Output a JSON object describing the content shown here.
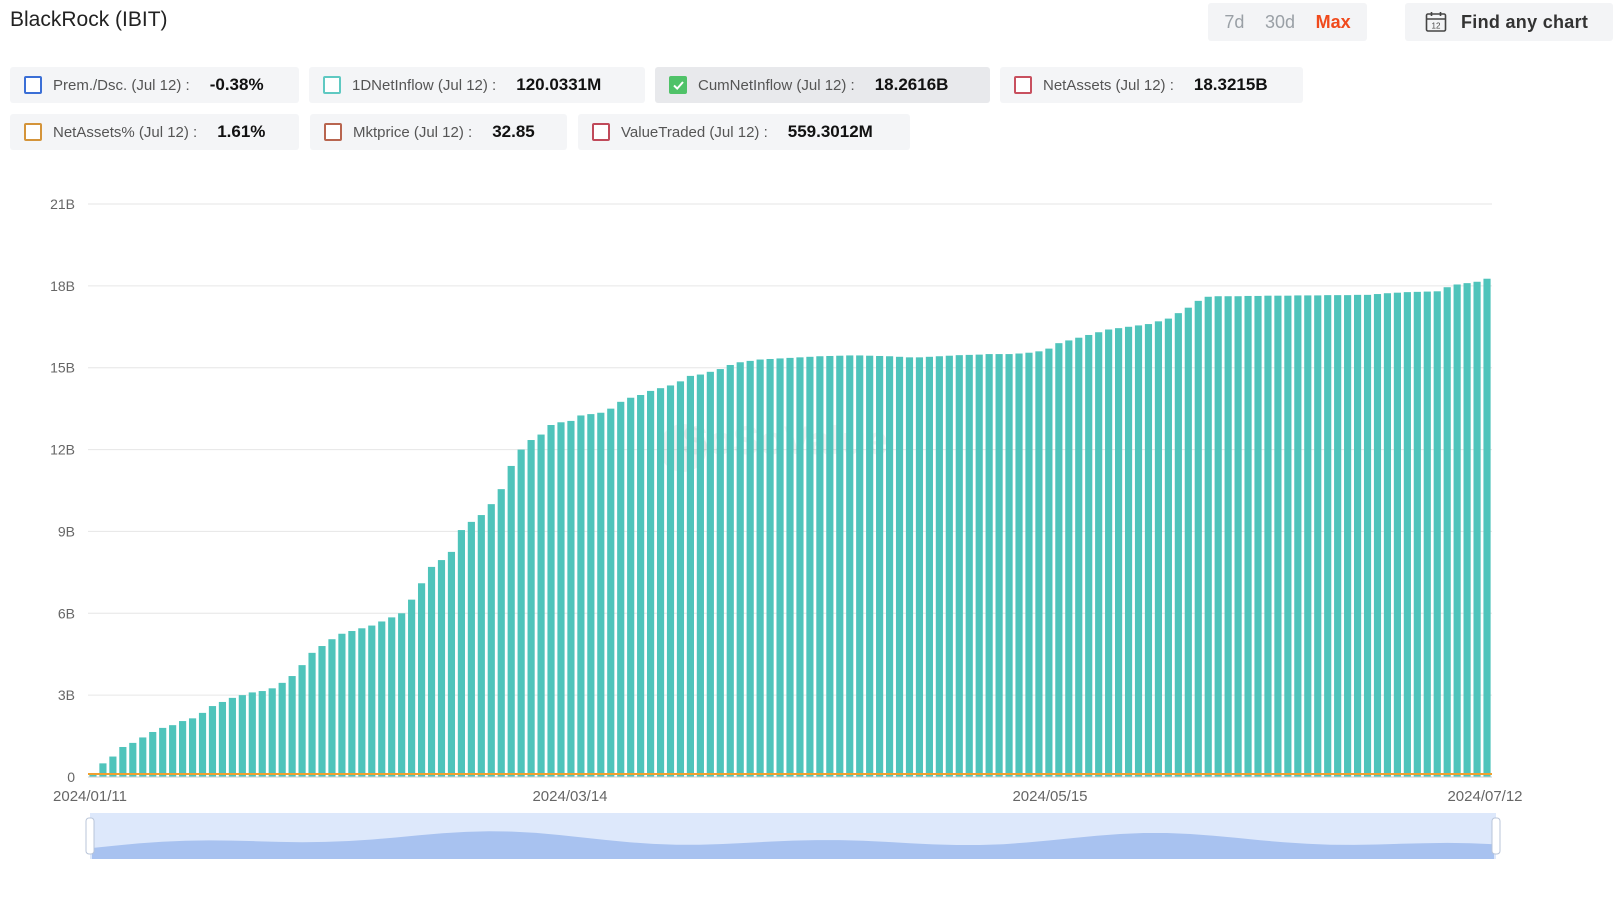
{
  "header": {
    "title": "BlackRock (IBIT)",
    "ranges": [
      "7d",
      "30d",
      "Max"
    ],
    "active_range": "Max",
    "find_chart_label": "Find any chart",
    "calendar_day": "12"
  },
  "legend": [
    {
      "label": "Prem./Dsc. (Jul 12) :",
      "value": "-0.38%",
      "color": "#3b6fd6",
      "checked": false
    },
    {
      "label": "1DNetInflow (Jul 12) :",
      "value": "120.0331M",
      "color": "#5fc9c2",
      "checked": false
    },
    {
      "label": "CumNetInflow (Jul 12) :",
      "value": "18.2616B",
      "color": "#4fc268",
      "checked": true
    },
    {
      "label": "NetAssets (Jul 12) :",
      "value": "18.3215B",
      "color": "#c8505f",
      "checked": false
    },
    {
      "label": "NetAssets% (Jul 12) :",
      "value": "1.61%",
      "color": "#d4943a",
      "checked": false
    },
    {
      "label": "Mktprice (Jul 12) :",
      "value": "32.85",
      "color": "#b8654f",
      "checked": false
    },
    {
      "label": "ValueTraded (Jul 12) :",
      "value": "559.3012M",
      "color": "#c04a5a",
      "checked": false
    }
  ],
  "watermark": "SoSoValue",
  "colors": {
    "bar": "#4fc4bb",
    "baseline": "#f0a030",
    "grid": "#e6e6e6",
    "navigator_fill": "#a8c2f0",
    "navigator_bg": "#dde8fb"
  },
  "chart_data": {
    "type": "bar",
    "series_name": "CumNetInflow",
    "y_unit": "B (USD)",
    "ylim": [
      0,
      21
    ],
    "y_ticks": [
      "0",
      "3B",
      "6B",
      "9B",
      "12B",
      "15B",
      "18B",
      "21B"
    ],
    "x_ticks": [
      "2024/01/11",
      "2024/03/14",
      "2024/05/15",
      "2024/07/12"
    ],
    "values": [
      0.11,
      0.5,
      0.75,
      1.1,
      1.25,
      1.45,
      1.65,
      1.8,
      1.9,
      2.05,
      2.15,
      2.35,
      2.6,
      2.75,
      2.9,
      3.0,
      3.1,
      3.15,
      3.25,
      3.45,
      3.7,
      4.1,
      4.55,
      4.8,
      5.05,
      5.25,
      5.35,
      5.45,
      5.55,
      5.7,
      5.85,
      6.0,
      6.5,
      7.1,
      7.7,
      7.95,
      8.25,
      9.05,
      9.35,
      9.6,
      10.0,
      10.55,
      11.4,
      12.0,
      12.35,
      12.55,
      12.9,
      13.0,
      13.05,
      13.25,
      13.3,
      13.35,
      13.5,
      13.75,
      13.9,
      14.0,
      14.15,
      14.25,
      14.35,
      14.5,
      14.7,
      14.75,
      14.85,
      14.95,
      15.1,
      15.2,
      15.25,
      15.3,
      15.32,
      15.34,
      15.36,
      15.38,
      15.4,
      15.42,
      15.43,
      15.44,
      15.45,
      15.45,
      15.44,
      15.43,
      15.42,
      15.4,
      15.38,
      15.38,
      15.4,
      15.42,
      15.44,
      15.46,
      15.47,
      15.48,
      15.5,
      15.5,
      15.5,
      15.52,
      15.55,
      15.6,
      15.7,
      15.9,
      16.0,
      16.1,
      16.2,
      16.3,
      16.4,
      16.45,
      16.5,
      16.55,
      16.6,
      16.7,
      16.8,
      17.0,
      17.2,
      17.45,
      17.6,
      17.62,
      17.62,
      17.62,
      17.63,
      17.63,
      17.64,
      17.64,
      17.64,
      17.65,
      17.65,
      17.65,
      17.66,
      17.66,
      17.66,
      17.67,
      17.67,
      17.7,
      17.73,
      17.75,
      17.77,
      17.78,
      17.79,
      17.8,
      17.95,
      18.05,
      18.1,
      18.15,
      18.2616
    ]
  }
}
